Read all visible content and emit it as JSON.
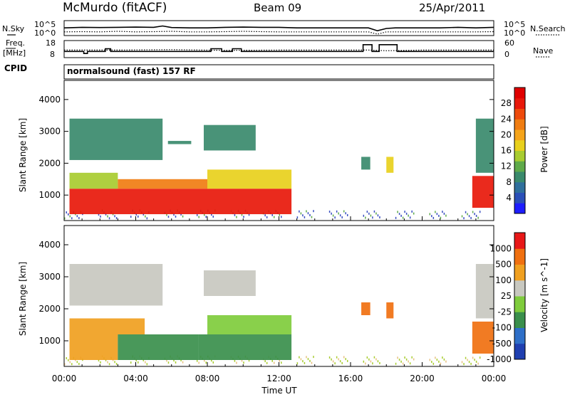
{
  "header": {
    "station": "McMurdo (fitACF)",
    "beam": "Beam 09",
    "date": "25/Apr/2011"
  },
  "side_labels": {
    "nsky": "N.Sky",
    "freq": "Freq.",
    "freq_unit": "[MHz]",
    "cpid": "CPID",
    "nsearch": "N.Search",
    "nave": "Nave"
  },
  "cpid_text": "normalsound (fast) 157 RF",
  "xlabel": "Time UT",
  "chart_data": [
    {
      "type": "line",
      "name": "noise",
      "y_left_ticks": [
        "10^5",
        "10^0"
      ],
      "y_right_ticks": [
        "10^5",
        "10^0"
      ],
      "series": [
        {
          "name": "N.Sky",
          "style": "solid",
          "x": [
            0,
            1,
            2,
            3,
            4,
            5,
            5.5,
            6,
            7,
            8,
            9,
            10,
            11,
            12,
            13,
            14,
            16,
            17,
            17.5,
            18,
            18.5,
            19,
            20,
            21,
            22,
            23,
            24
          ],
          "y": [
            0.55,
            0.6,
            0.58,
            0.6,
            0.62,
            0.6,
            0.72,
            0.58,
            0.55,
            0.55,
            0.6,
            0.62,
            0.6,
            0.6,
            0.55,
            0.55,
            0.55,
            0.55,
            0.3,
            0.5,
            0.55,
            0.55,
            0.55,
            0.55,
            0.6,
            0.55,
            0.6
          ]
        },
        {
          "name": "N.Search",
          "style": "dotted",
          "x": [
            0,
            1,
            2,
            3,
            4,
            5,
            6,
            7,
            8,
            9,
            10,
            11,
            12,
            13,
            14,
            16,
            17,
            17.5,
            18,
            19,
            20,
            21,
            22,
            23,
            24
          ],
          "y": [
            0.2,
            0.22,
            0.2,
            0.25,
            0.2,
            0.22,
            0.25,
            0.2,
            0.2,
            0.22,
            0.25,
            0.22,
            0.2,
            0.2,
            0.2,
            0.2,
            0.2,
            0.0,
            0.2,
            0.2,
            0.2,
            0.2,
            0.2,
            0.2,
            0.22
          ]
        }
      ]
    },
    {
      "type": "line",
      "name": "frequency",
      "y_left_ticks": [
        "18",
        "8"
      ],
      "y_right_ticks": [
        "60",
        "0"
      ],
      "series": [
        {
          "name": "Freq.",
          "style": "solid",
          "x": [
            0,
            1.1,
            1.1,
            1.3,
            1.3,
            2.3,
            2.3,
            2.6,
            2.6,
            8.2,
            8.2,
            8.8,
            8.8,
            9.4,
            9.4,
            9.9,
            9.9,
            16.7,
            16.7,
            17.2,
            17.2,
            17.6,
            17.6,
            18.6,
            18.6,
            19.1,
            19.1,
            24
          ],
          "y": [
            11,
            11,
            9.5,
            9.5,
            11,
            11,
            13,
            13,
            11,
            11,
            13,
            13,
            11,
            11,
            13,
            13,
            11,
            11,
            16,
            16,
            11,
            11,
            16,
            16,
            11,
            11,
            11,
            11
          ]
        },
        {
          "name": "Nave",
          "style": "dotted",
          "x": [
            0,
            3,
            6,
            9,
            12,
            15,
            17,
            18,
            20,
            22,
            24
          ],
          "y": [
            12,
            12,
            12.3,
            11.8,
            12,
            12,
            12,
            11.5,
            12,
            12,
            12
          ]
        }
      ]
    },
    {
      "type": "heatmap",
      "name": "power",
      "x_ticks": [
        "00:00",
        "04:00",
        "08:00",
        "12:00",
        "16:00",
        "20:00",
        "00:00"
      ],
      "xlim": [
        0,
        24
      ],
      "ylabel": "Slant Range [km]",
      "y_ticks": [
        1000,
        2000,
        3000,
        4000
      ],
      "ylim": [
        200,
        4600
      ],
      "colorbar_label": "Power [dB]",
      "colorbar_ticks": [
        4,
        8,
        12,
        16,
        20,
        24,
        28
      ],
      "colorbar_range": [
        0,
        32
      ],
      "colorbar_colors": [
        "#1d1dff",
        "#2a4fb8",
        "#2f6f9c",
        "#3a8a6c",
        "#5faa4a",
        "#a8cc30",
        "#e8d01c",
        "#f5a41a",
        "#f07d12",
        "#ee4a0c",
        "#e8180a",
        "#e00000"
      ],
      "regions": [
        {
          "t0": 0.3,
          "t1": 12.7,
          "r0": 400,
          "r1": 1200,
          "level": 29
        },
        {
          "t0": 0.3,
          "t1": 3.0,
          "r0": 1200,
          "r1": 1700,
          "level": 14
        },
        {
          "t0": 3.0,
          "t1": 8.0,
          "r0": 1200,
          "r1": 1500,
          "level": 22
        },
        {
          "t0": 8.0,
          "t1": 12.7,
          "r0": 1200,
          "r1": 1800,
          "level": 18
        },
        {
          "t0": 0.3,
          "t1": 5.5,
          "r0": 2100,
          "r1": 3400,
          "level": 10
        },
        {
          "t0": 7.8,
          "t1": 10.7,
          "r0": 2400,
          "r1": 3200,
          "level": 9
        },
        {
          "t0": 5.8,
          "t1": 7.1,
          "r0": 2600,
          "r1": 2700,
          "level": 10
        },
        {
          "t0": 16.6,
          "t1": 17.1,
          "r0": 1800,
          "r1": 2200,
          "level": 8
        },
        {
          "t0": 18.0,
          "t1": 18.4,
          "r0": 1700,
          "r1": 2200,
          "level": 17
        },
        {
          "t0": 22.8,
          "t1": 24.0,
          "r0": 600,
          "r1": 1600,
          "level": 28
        },
        {
          "t0": 23.0,
          "t1": 24.0,
          "r0": 1700,
          "r1": 3400,
          "level": 9
        }
      ]
    },
    {
      "type": "heatmap",
      "name": "velocity",
      "x_ticks": [
        "00:00",
        "04:00",
        "08:00",
        "12:00",
        "16:00",
        "20:00",
        "00:00"
      ],
      "xlim": [
        0,
        24
      ],
      "ylabel": "Slant Range [km]",
      "y_ticks": [
        1000,
        2000,
        3000,
        4000
      ],
      "ylim": [
        200,
        4600
      ],
      "colorbar_label": "Velocity [m s^-1]",
      "colorbar_ticks": [
        "1000",
        "500",
        "100",
        "25",
        "-25",
        "-100",
        "-500",
        "-1000"
      ],
      "colorbar_colors": [
        "#1f3fb0",
        "#2e6fc8",
        "#3a8f4c",
        "#7fcc3c",
        "#c8c8c0",
        "#f0a020",
        "#f07010",
        "#e81818"
      ],
      "regions": [
        {
          "t0": 0.3,
          "t1": 3.0,
          "r0": 400,
          "r1": 1200,
          "cat": 5
        },
        {
          "t0": 3.0,
          "t1": 7.5,
          "r0": 400,
          "r1": 1200,
          "cat": 2
        },
        {
          "t0": 7.5,
          "t1": 12.7,
          "r0": 400,
          "r1": 1200,
          "cat": 2
        },
        {
          "t0": 0.3,
          "t1": 4.5,
          "r0": 1200,
          "r1": 1700,
          "cat": 5
        },
        {
          "t0": 8.0,
          "t1": 12.7,
          "r0": 1200,
          "r1": 1800,
          "cat": 3
        },
        {
          "t0": 0.3,
          "t1": 5.5,
          "r0": 2100,
          "r1": 3400,
          "cat": 4
        },
        {
          "t0": 7.8,
          "t1": 10.7,
          "r0": 2400,
          "r1": 3200,
          "cat": 4
        },
        {
          "t0": 16.6,
          "t1": 17.1,
          "r0": 1800,
          "r1": 2200,
          "cat": 6
        },
        {
          "t0": 18.0,
          "t1": 18.4,
          "r0": 1700,
          "r1": 2200,
          "cat": 6
        },
        {
          "t0": 22.8,
          "t1": 24.0,
          "r0": 600,
          "r1": 1600,
          "cat": 6
        },
        {
          "t0": 23.0,
          "t1": 24.0,
          "r0": 1700,
          "r1": 3400,
          "cat": 4
        }
      ]
    }
  ]
}
